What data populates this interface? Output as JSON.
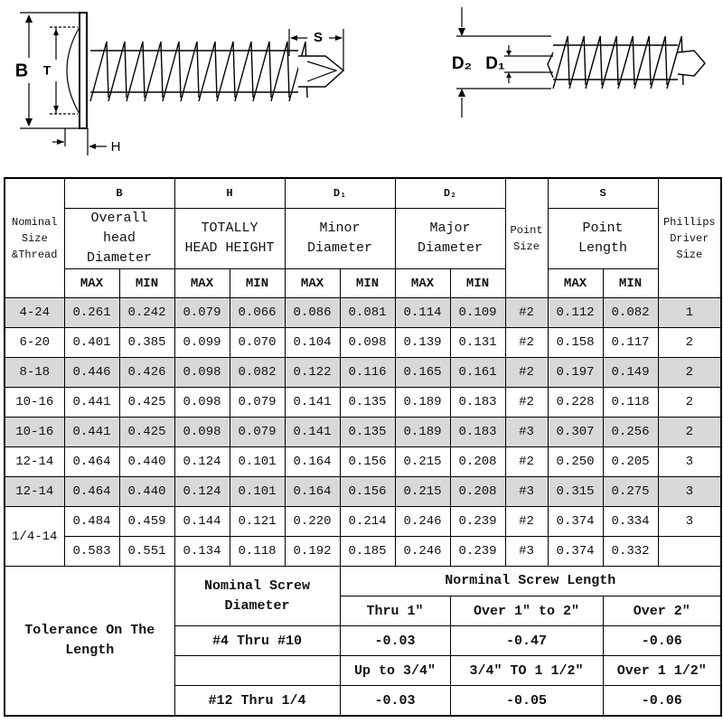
{
  "diagram": {
    "b": "B",
    "t": "T",
    "s": "S",
    "h": "H",
    "d2": "D₂",
    "d1": "D₁"
  },
  "table": {
    "header": {
      "size": "Nominal Size &Thread",
      "groups": [
        {
          "symbol": "B",
          "description": "Overall head Diameter"
        },
        {
          "symbol": "H",
          "description": "TOTALLY HEAD HEIGHT"
        },
        {
          "symbol": "D₁",
          "description": "Minor Diameter"
        },
        {
          "symbol": "D₂",
          "description": "Major Diameter"
        },
        {
          "symbol": "S",
          "description": "Point Length"
        }
      ],
      "point_size": "Point Size",
      "driver": "Phillips Driver Size",
      "limits": [
        "MAX",
        "MIN",
        "MAX",
        "MIN",
        "MAX",
        "MIN",
        "MAX",
        "MIN",
        "MAX",
        "MIN"
      ]
    },
    "rows": [
      {
        "size": "4-24",
        "values": [
          "0.261",
          "0.242",
          "0.079",
          "0.066",
          "0.086",
          "0.081",
          "0.114",
          "0.109",
          "#2",
          "0.112",
          "0.082"
        ],
        "driver": "1"
      },
      {
        "size": "6-20",
        "values": [
          "0.401",
          "0.385",
          "0.099",
          "0.070",
          "0.104",
          "0.098",
          "0.139",
          "0.131",
          "#2",
          "0.158",
          "0.117"
        ],
        "driver": "2"
      },
      {
        "size": "8-18",
        "values": [
          "0.446",
          "0.426",
          "0.098",
          "0.082",
          "0.122",
          "0.116",
          "0.165",
          "0.161",
          "#2",
          "0.197",
          "0.149"
        ],
        "driver": "2"
      },
      {
        "size": "10-16",
        "values": [
          "0.441",
          "0.425",
          "0.098",
          "0.079",
          "0.141",
          "0.135",
          "0.189",
          "0.183",
          "#2",
          "0.228",
          "0.118"
        ],
        "driver": "2"
      },
      {
        "size": "10-16",
        "values": [
          "0.441",
          "0.425",
          "0.098",
          "0.079",
          "0.141",
          "0.135",
          "0.189",
          "0.183",
          "#3",
          "0.307",
          "0.256"
        ],
        "driver": "2"
      },
      {
        "size": "12-14",
        "values": [
          "0.464",
          "0.440",
          "0.124",
          "0.101",
          "0.164",
          "0.156",
          "0.215",
          "0.208",
          "#2",
          "0.250",
          "0.205"
        ],
        "driver": "3"
      },
      {
        "size": "12-14",
        "values": [
          "0.464",
          "0.440",
          "0.124",
          "0.101",
          "0.164",
          "0.156",
          "0.215",
          "0.208",
          "#3",
          "0.315",
          "0.275"
        ],
        "driver": "3"
      },
      {
        "size": "1/4-14",
        "values": [
          "0.484",
          "0.459",
          "0.144",
          "0.121",
          "0.220",
          "0.214",
          "0.246",
          "0.239",
          "#2",
          "0.374",
          "0.334"
        ],
        "driver": "3"
      },
      {
        "values": [
          "0.583",
          "0.551",
          "0.134",
          "0.118",
          "0.192",
          "0.185",
          "0.246",
          "0.239",
          "#3",
          "0.374",
          "0.332"
        ]
      }
    ]
  },
  "tolerance": {
    "title": "Tolerance On The Length",
    "diameter_header": "Nominal Screw Diameter",
    "length_header": "Norminal Screw Length",
    "groups": [
      {
        "ranges": [
          "Thru 1\"",
          "Over 1\" to 2\"",
          "Over 2\""
        ],
        "diameter": "#4 Thru #10",
        "values": [
          "-0.03",
          "-0.47",
          "-0.06"
        ]
      },
      {
        "ranges": [
          "Up to 3/4\"",
          "3/4\" TO 1 1/2\"",
          "Over 1 1/2\""
        ],
        "diameter": "#12 Thru 1/4",
        "values": [
          "-0.03",
          "-0.05",
          "-0.06"
        ]
      }
    ]
  }
}
